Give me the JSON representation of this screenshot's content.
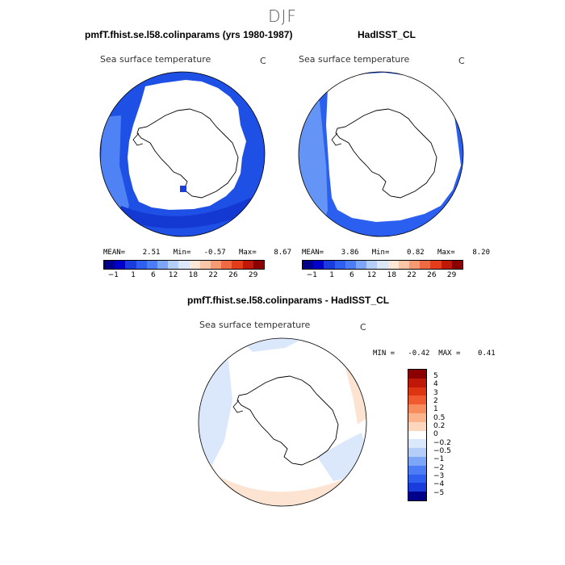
{
  "figure": {
    "title": "DJF"
  },
  "panels": [
    {
      "title": "pmfT.fhist.se.l58.colinparams (yrs 1980-1987)",
      "variable": "Sea surface temperature",
      "unit": "C",
      "stats": "MEAN=    2.51   Min=   -0.57   Max=    8.67",
      "colorbar_ticks": [
        "−1",
        "1",
        "6",
        "12",
        "18",
        "22",
        "26",
        "29"
      ]
    },
    {
      "title": "HadISST_CL",
      "variable": "Sea surface temperature",
      "unit": "C",
      "stats": "MEAN=    3.86   Min=    0.82   Max=    8.20",
      "colorbar_ticks": [
        "−1",
        "1",
        "6",
        "12",
        "18",
        "22",
        "26",
        "29"
      ]
    },
    {
      "title": "pmfT.fhist.se.l58.colinparams - HadISST_CL",
      "variable": "Sea surface temperature",
      "unit": "C",
      "stats": "MIN =   -0.42  MAX =    0.41",
      "colorbar_labels": [
        "5",
        "4",
        "3",
        "2",
        "1",
        "0.5",
        "0.2",
        "0",
        "−0.2",
        "−0.5",
        "−1",
        "−2",
        "−3",
        "−4",
        "−5"
      ]
    }
  ],
  "colors": {
    "sst_scale": [
      "#00008b",
      "#0000c8",
      "#1a3cdc",
      "#2f5fef",
      "#4d7cf7",
      "#7ea6f8",
      "#b4cdf9",
      "#dbe8fb",
      "#fde8d8",
      "#f9c6a8",
      "#f59a72",
      "#ef6a43",
      "#e53c1b",
      "#c01808",
      "#8b0000"
    ],
    "diff_scale": [
      "#8b0000",
      "#c01808",
      "#dd3514",
      "#ef5a2f",
      "#f88c5c",
      "#fbb38c",
      "#fdd7bd",
      "#ffffff",
      "#dbe8fb",
      "#b4cdf9",
      "#7ea6f8",
      "#4d7cf7",
      "#2f5fef",
      "#1a3cdc",
      "#00008b"
    ],
    "ocean_model": "#1e4fe6",
    "ocean_model_inner": "#1d3fd8",
    "ocean_obs": "#2b5ff0",
    "ocean_obs_outer": "#5f8ff6"
  }
}
